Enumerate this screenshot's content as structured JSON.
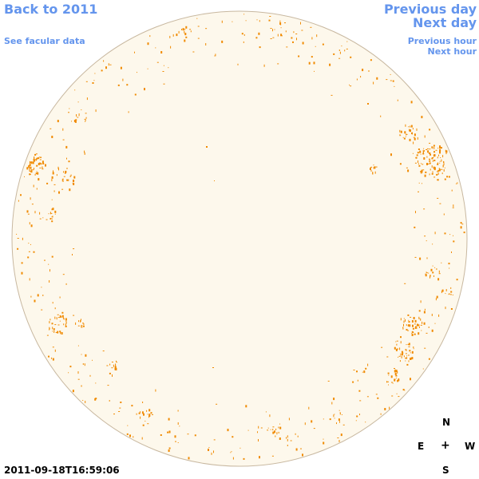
{
  "nav": {
    "back_label": "Back to 2011",
    "facular_label": "See facular data",
    "prev_day_label": "Previous day",
    "next_day_label": "Next day",
    "prev_hour_label": "Previous hour",
    "next_hour_label": "Next hour",
    "link_color": "#6495ed"
  },
  "sun": {
    "disk_fill": "#fdf8ec",
    "limb_color": "#c8b8a0",
    "facula_color": "#f08a00"
  },
  "compass": {
    "n": "N",
    "e": "E",
    "center": "+",
    "w": "W",
    "s": "S"
  },
  "timestamp": "2011-09-18T16:59:06"
}
